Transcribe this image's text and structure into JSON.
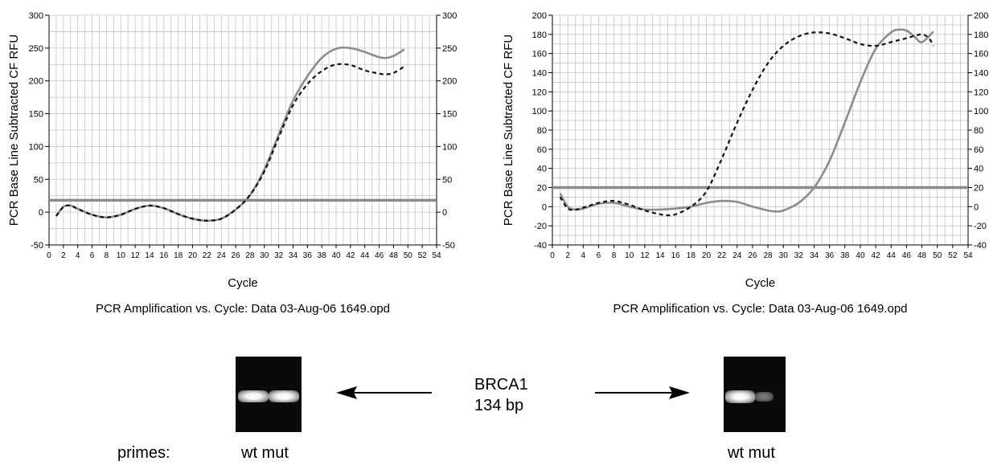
{
  "chart_data": [
    {
      "type": "line",
      "title": "PCR Amplification vs. Cycle: Data 03-Aug-06 1649.opd",
      "xlabel": "Cycle",
      "ylabel": "PCR Base Line Subtracted CF RFU",
      "xlim": [
        0,
        54
      ],
      "ylim": [
        -50,
        300
      ],
      "x_ticks": [
        0,
        2,
        4,
        6,
        8,
        10,
        12,
        14,
        16,
        18,
        20,
        22,
        24,
        26,
        28,
        30,
        32,
        34,
        36,
        38,
        40,
        42,
        44,
        46,
        48,
        50,
        52,
        54
      ],
      "y_ticks": [
        -50,
        0,
        50,
        100,
        150,
        200,
        250,
        300
      ],
      "y_tick_labels": [
        "-50",
        "0",
        "50",
        "100",
        "150",
        "200",
        "250",
        "300"
      ],
      "grid": true,
      "threshold": 18,
      "threshold_color": "#8a8a8a",
      "series": [
        {
          "style": "solid",
          "color": "#8c8c8c",
          "x": [
            1,
            2,
            3,
            4,
            6,
            8,
            10,
            12,
            14,
            16,
            18,
            20,
            22,
            24,
            26,
            28,
            30,
            32,
            34,
            36,
            38,
            40,
            42,
            44,
            46,
            47,
            48,
            49.5
          ],
          "y": [
            -6,
            8,
            10,
            5,
            -4,
            -8,
            -4,
            5,
            10,
            6,
            -3,
            -10,
            -13,
            -10,
            4,
            26,
            65,
            118,
            170,
            207,
            235,
            249,
            250,
            244,
            236,
            235,
            238,
            248
          ]
        },
        {
          "style": "dashed",
          "color": "#111111",
          "x": [
            1,
            2,
            3,
            4,
            6,
            8,
            10,
            12,
            14,
            16,
            18,
            20,
            22,
            24,
            26,
            28,
            30,
            32,
            34,
            36,
            38,
            40,
            42,
            44,
            46,
            47,
            48,
            49.5
          ],
          "y": [
            -6,
            8,
            10,
            5,
            -4,
            -8,
            -4,
            5,
            10,
            6,
            -3,
            -10,
            -13,
            -10,
            4,
            26,
            62,
            114,
            163,
            195,
            215,
            225,
            224,
            216,
            211,
            210,
            212,
            222
          ]
        }
      ]
    },
    {
      "type": "line",
      "title": "PCR Amplification vs. Cycle: Data 03-Aug-06 1649.opd",
      "xlabel": "Cycle",
      "ylabel": "PCR Base Line Subtracted CF RFU",
      "xlim": [
        0,
        54
      ],
      "ylim": [
        -40,
        200
      ],
      "x_ticks": [
        0,
        2,
        4,
        6,
        8,
        10,
        12,
        14,
        16,
        18,
        20,
        22,
        24,
        26,
        28,
        30,
        32,
        34,
        36,
        38,
        40,
        42,
        44,
        46,
        48,
        50,
        52,
        54
      ],
      "y_ticks": [
        -40,
        -20,
        0,
        20,
        40,
        60,
        80,
        100,
        120,
        140,
        160,
        180,
        200
      ],
      "y_tick_labels": [
        "-40",
        "-20",
        "0",
        "20",
        "40",
        "60",
        "80",
        "100",
        "120",
        "140",
        "160",
        "180",
        "200"
      ],
      "grid": true,
      "threshold": 20,
      "threshold_color": "#8a8a8a",
      "series": [
        {
          "style": "solid",
          "color": "#8c8c8c",
          "x": [
            1,
            2,
            3,
            4,
            6,
            8,
            10,
            12,
            14,
            16,
            18,
            20,
            22,
            24,
            26,
            28,
            29,
            30,
            32,
            34,
            36,
            38,
            40,
            42,
            44,
            45,
            46,
            47,
            48,
            49.5
          ],
          "y": [
            14,
            0,
            -3,
            -2,
            3,
            4,
            0,
            -3,
            -3,
            -2,
            0,
            4,
            6,
            5,
            0,
            -4,
            -5,
            -4,
            4,
            20,
            48,
            88,
            130,
            165,
            182,
            185,
            184,
            178,
            172,
            183
          ]
        },
        {
          "style": "dashed",
          "color": "#111111",
          "x": [
            1,
            2,
            3,
            4,
            6,
            8,
            10,
            12,
            14,
            15,
            16,
            18,
            20,
            22,
            24,
            26,
            28,
            30,
            32,
            34,
            36,
            38,
            40,
            42,
            44,
            46,
            48,
            49,
            49.5
          ],
          "y": [
            10,
            -2,
            -3,
            -1,
            4,
            6,
            2,
            -4,
            -8,
            -9,
            -8,
            0,
            16,
            50,
            88,
            122,
            150,
            168,
            178,
            182,
            181,
            176,
            170,
            168,
            172,
            176,
            180,
            175,
            168
          ]
        }
      ]
    }
  ],
  "gel": {
    "label_line1": "BRCA1",
    "label_line2": "134 bp",
    "primes_label": "primes:",
    "lane_label_left": "wt mut",
    "lane_label_right": "wt mut"
  }
}
